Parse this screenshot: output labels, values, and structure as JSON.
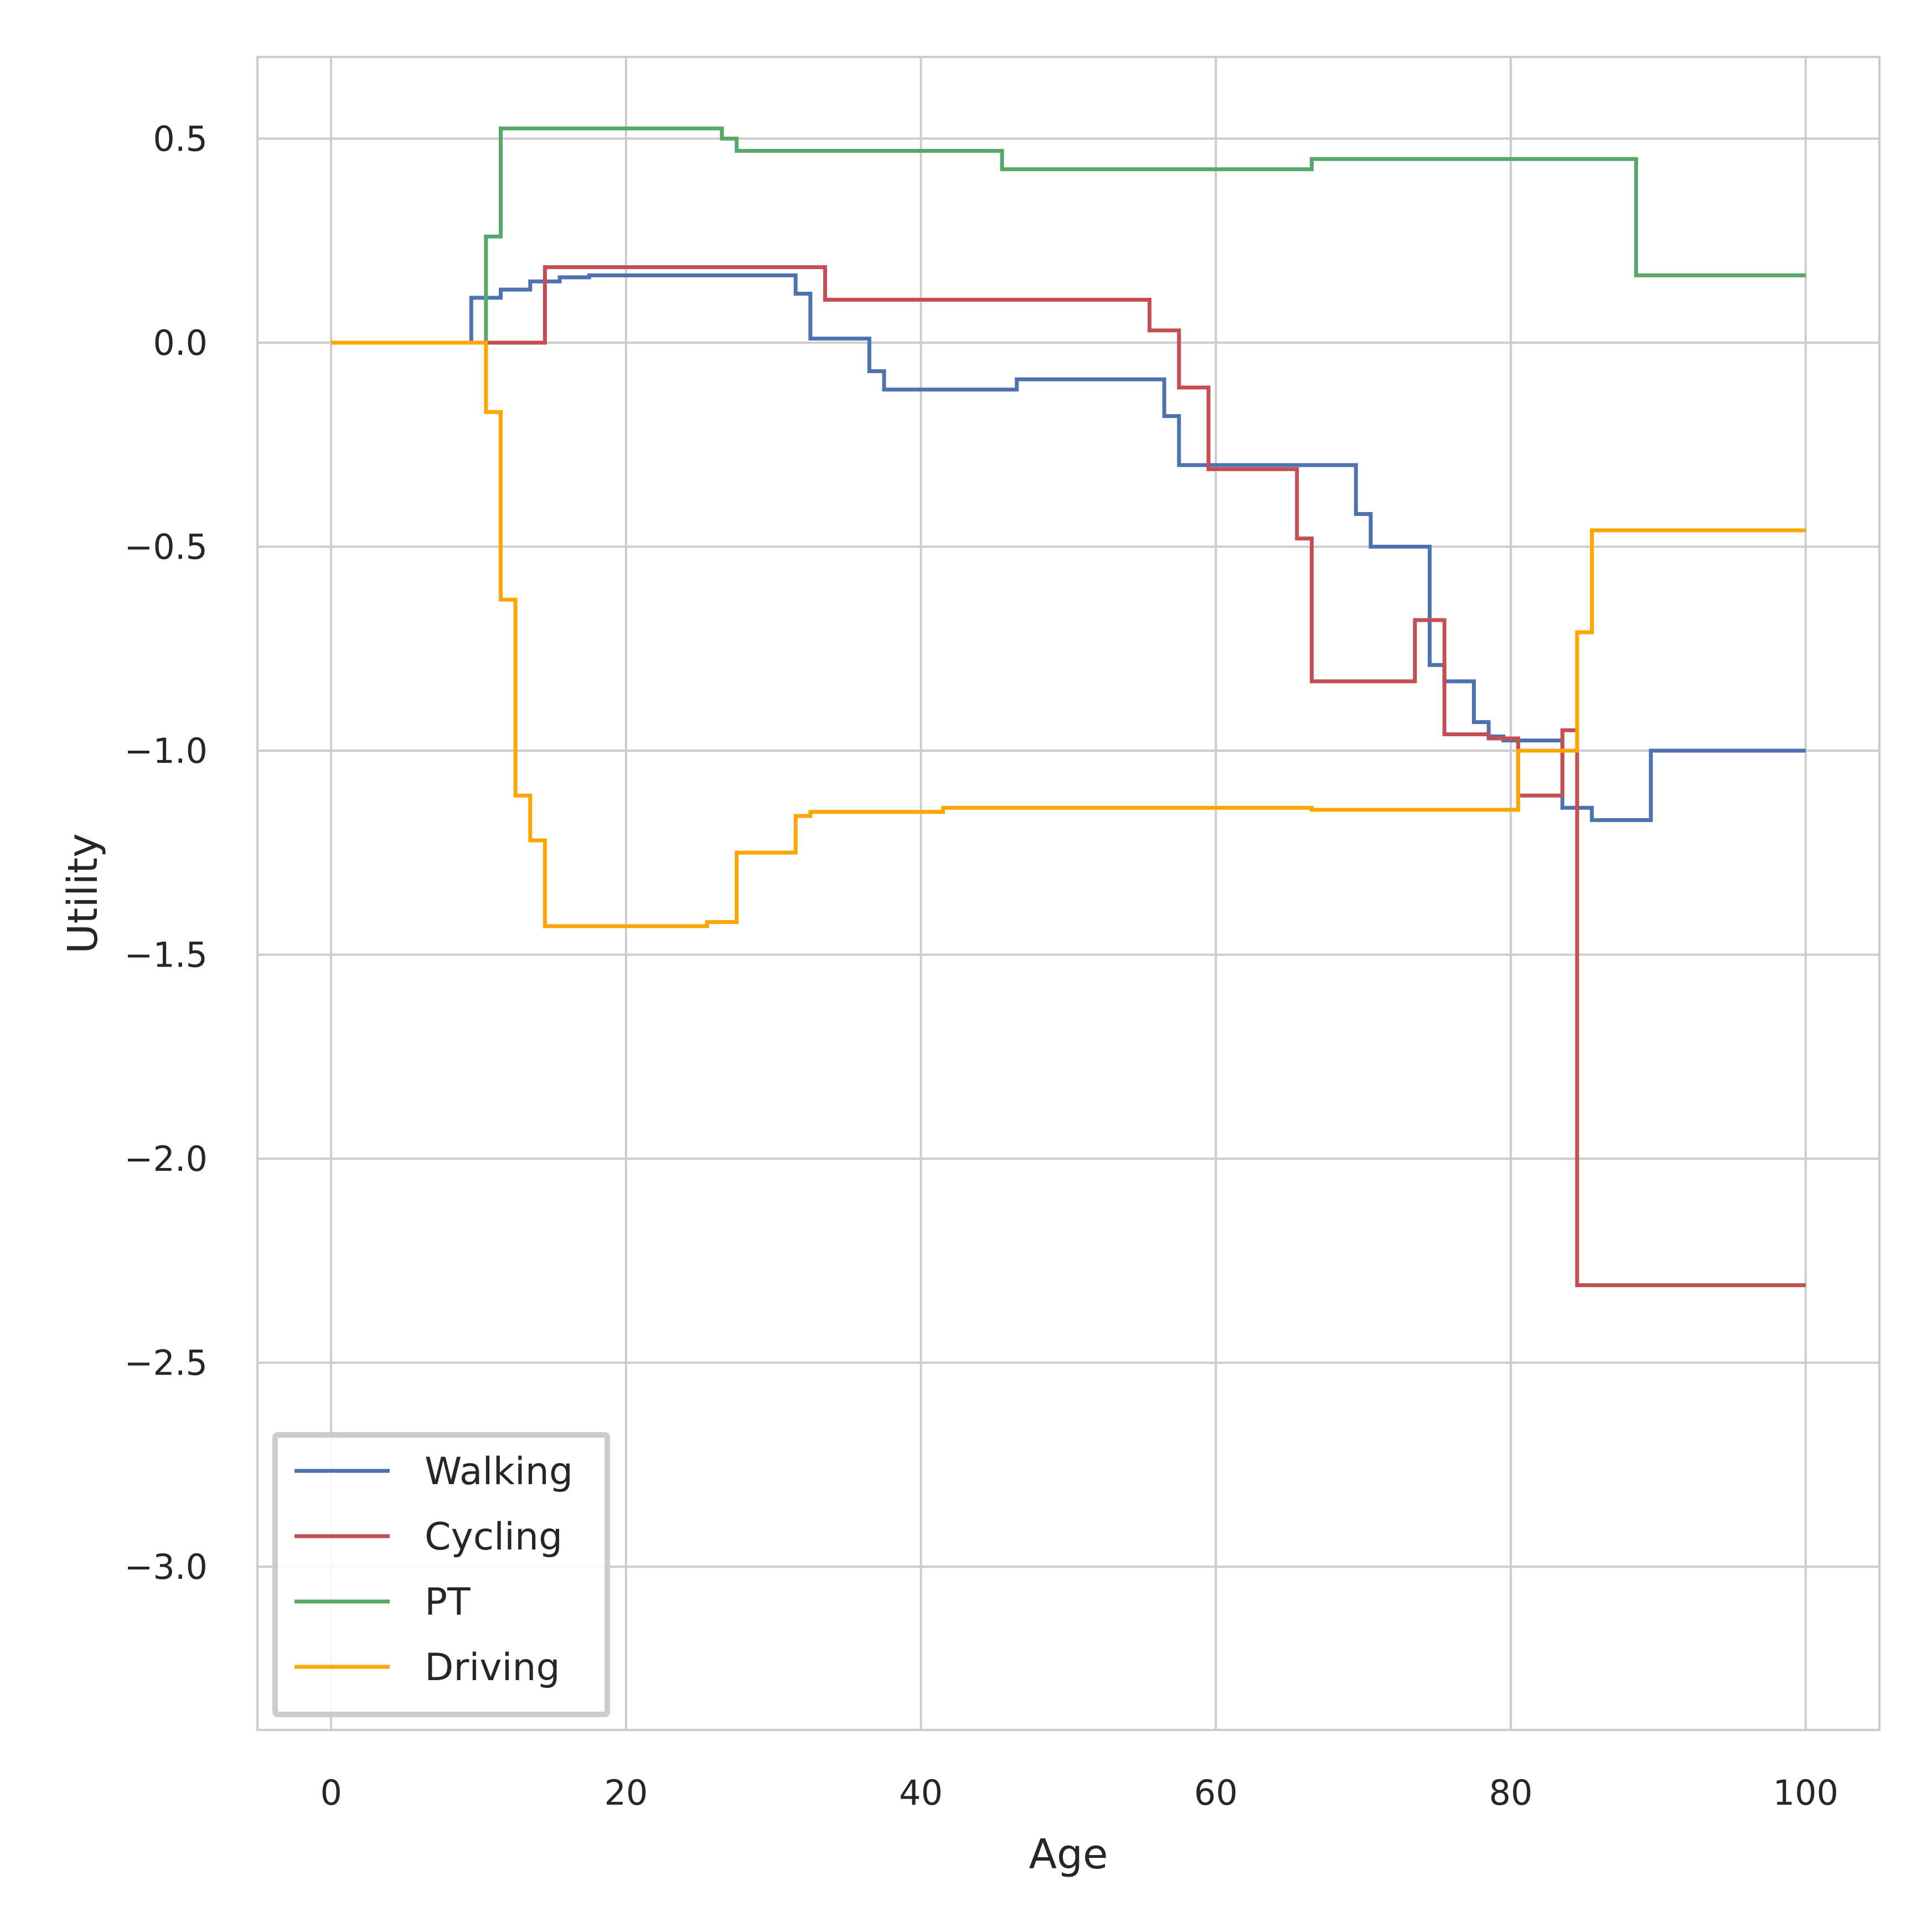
{
  "chart_data": {
    "type": "line",
    "step": "post",
    "title": "",
    "xlabel": "Age",
    "ylabel": "Utility",
    "xlim": [
      -5,
      105
    ],
    "ylim": [
      -3.4,
      0.7
    ],
    "xticks": [
      0,
      20,
      40,
      60,
      80,
      100
    ],
    "yticks": [
      0.5,
      0.0,
      -0.5,
      -1.0,
      -1.5,
      -2.0,
      -2.5,
      -3.0
    ],
    "xtick_labels": [
      "0",
      "20",
      "40",
      "60",
      "80",
      "100"
    ],
    "ytick_labels": [
      "0.5",
      "0.0",
      "−0.5",
      "−1.0",
      "−1.5",
      "−2.0",
      "−2.5",
      "−3.0"
    ],
    "grid": true,
    "legend_position": "lower-left",
    "series": [
      {
        "name": "Walking",
        "color": "#4c72b0",
        "x": [
          0,
          9.5,
          11.5,
          13.5,
          15.5,
          17.5,
          31.5,
          32.5,
          36.5,
          37.5,
          46.5,
          56.5,
          57.5,
          69.5,
          70.5,
          74.5,
          75.5,
          77.5,
          78.5,
          79.5,
          83.5,
          85.5,
          89.5,
          100
        ],
        "y": [
          0,
          0.11,
          0.13,
          0.15,
          0.16,
          0.165,
          0.12,
          0.01,
          -0.07,
          -0.115,
          -0.09,
          -0.18,
          -0.3,
          -0.42,
          -0.5,
          -0.79,
          -0.83,
          -0.93,
          -0.965,
          -0.975,
          -1.14,
          -1.17,
          -1.0,
          -1.0
        ]
      },
      {
        "name": "Cycling",
        "color": "#c44e52",
        "x": [
          0,
          14.5,
          33.5,
          55.5,
          57.5,
          59.5,
          65.5,
          66.5,
          73.5,
          75.5,
          78.5,
          80.5,
          83.5,
          84.5,
          100
        ],
        "y": [
          0,
          0.185,
          0.105,
          0.03,
          -0.11,
          -0.31,
          -0.48,
          -0.83,
          -0.68,
          -0.96,
          -0.97,
          -1.11,
          -0.95,
          -2.31,
          -2.31
        ]
      },
      {
        "name": "PT",
        "color": "#55a868",
        "x": [
          0,
          10.5,
          11.5,
          26.5,
          27.5,
          45.5,
          66.5,
          88.5,
          100
        ],
        "y": [
          0,
          0.26,
          0.525,
          0.5,
          0.47,
          0.425,
          0.45,
          0.165,
          0.165
        ]
      },
      {
        "name": "Driving",
        "color": "#ffa500",
        "x": [
          0,
          10.5,
          11.5,
          12.5,
          13.5,
          14.5,
          25.5,
          27.5,
          31.5,
          32.5,
          41.5,
          66.5,
          80.5,
          84.5,
          85.5,
          100
        ],
        "y": [
          0,
          -0.17,
          -0.63,
          -1.11,
          -1.22,
          -1.43,
          -1.42,
          -1.25,
          -1.16,
          -1.15,
          -1.14,
          -1.145,
          -1.0,
          -0.71,
          -0.46,
          -0.46
        ]
      }
    ]
  }
}
